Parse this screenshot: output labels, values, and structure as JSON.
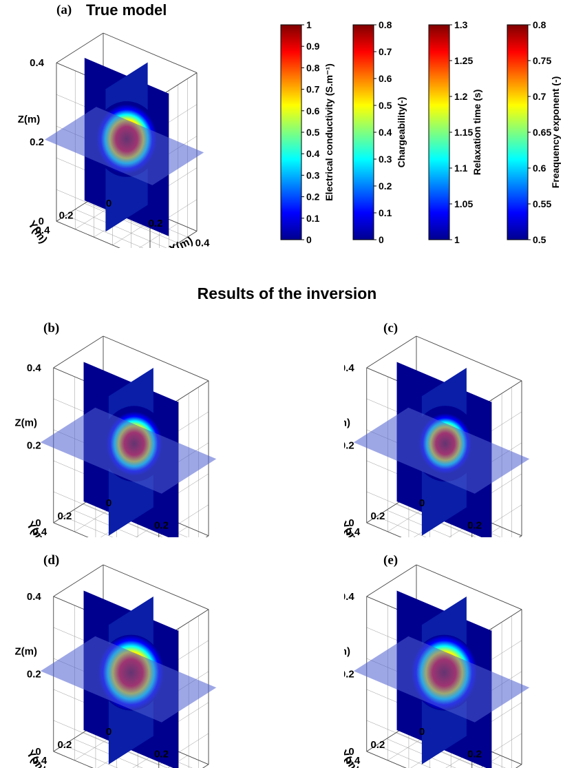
{
  "figure": {
    "section_title": "Results of the inversion",
    "panels": [
      {
        "id": "a",
        "label": "(a)",
        "title": "True model"
      },
      {
        "id": "b",
        "label": "(b)",
        "title": ""
      },
      {
        "id": "c",
        "label": "(c)",
        "title": ""
      },
      {
        "id": "d",
        "label": "(d)",
        "title": ""
      },
      {
        "id": "e",
        "label": "(e)",
        "title": ""
      }
    ],
    "axes": {
      "z_label": "Z(m)",
      "y_label": "Y(m)",
      "x_label": "X(m)",
      "z_ticks": [
        "0",
        "0.2",
        "0.4"
      ],
      "y_ticks": [
        "0.2",
        "0.4"
      ],
      "x_ticks": [
        "0",
        "0.2",
        "0.4"
      ]
    },
    "colorbars": [
      {
        "label": "Electrical conductivity (S.m⁻¹)",
        "ticks": [
          "1",
          "0.9",
          "0.8",
          "0.7",
          "0.6",
          "0.5",
          "0.4",
          "0.3",
          "0.2",
          "0.1",
          "0"
        ]
      },
      {
        "label": "Chargeability(-)",
        "ticks": [
          "0.8",
          "0.7",
          "0.6",
          "0.5",
          "0.4",
          "0.3",
          "0.2",
          "0.1",
          "0"
        ]
      },
      {
        "label": "Relaxation time (s)",
        "ticks": [
          "1.3",
          "1.25",
          "1.2",
          "1.15",
          "1.1",
          "1.05",
          "1"
        ]
      },
      {
        "label": "Freaquency exponent (-)",
        "ticks": [
          "0.8",
          "0.75",
          "0.7",
          "0.65",
          "0.6",
          "0.55",
          "0.5"
        ]
      }
    ],
    "colors": {
      "low": "#00008f",
      "high": "#7f0000"
    }
  }
}
